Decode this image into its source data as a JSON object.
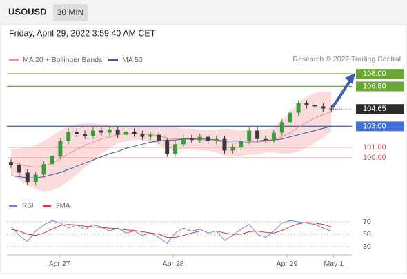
{
  "header": {
    "symbol": "USOUSD",
    "interval": "30 MIN",
    "timestamp": "Friday, April 29, 2022 3:59:40 AM CET"
  },
  "chart_data": {
    "type": "candlestick",
    "credit": "Research © 2022 Trading Central",
    "xlim": [
      -0.5,
      41.5
    ],
    "xticks": [
      {
        "value": 5.9,
        "label": "Apr 27"
      },
      {
        "value": 19.75,
        "label": "Apr 28"
      },
      {
        "value": 33.6,
        "label": "Apr 29"
      },
      {
        "value": 39.3,
        "label": "May 1"
      }
    ],
    "ylim": [
      96.66,
      108.8
    ],
    "up_color": "#3c9a3c",
    "down_color": "#3a3a3a",
    "open": [
      99.6,
      99.3,
      98.6,
      97.7,
      98.4,
      99.4,
      100.2,
      101.6,
      102.5,
      102.3,
      102.1,
      102.6,
      102.4,
      102.7,
      102.2,
      102.5,
      102.3,
      102.0,
      102.2,
      101.6,
      100.4,
      101.3,
      101.9,
      101.7,
      102.0,
      101.6,
      101.8,
      100.7,
      101.0,
      101.6,
      102.6,
      101.8,
      101.7,
      102.4,
      103.4,
      104.3,
      105.2,
      105.0,
      104.9,
      104.7
    ],
    "high": [
      99.9,
      99.6,
      98.9,
      98.7,
      99.7,
      100.5,
      101.9,
      102.8,
      102.8,
      102.6,
      102.9,
      102.9,
      103.0,
      103.0,
      102.8,
      102.8,
      102.6,
      102.5,
      102.5,
      101.9,
      101.6,
      102.2,
      102.2,
      102.3,
      102.3,
      102.1,
      102.1,
      101.3,
      101.9,
      102.9,
      102.9,
      102.1,
      102.7,
      103.7,
      104.6,
      105.5,
      105.5,
      105.3,
      105.2,
      105.0
    ],
    "low": [
      99.0,
      98.3,
      97.4,
      97.4,
      98.1,
      99.1,
      99.9,
      101.3,
      102.0,
      101.8,
      101.8,
      102.1,
      102.1,
      101.9,
      101.9,
      102.0,
      101.7,
      101.7,
      101.3,
      100.1,
      100.1,
      101.0,
      101.4,
      101.4,
      101.3,
      101.3,
      100.4,
      100.4,
      100.7,
      101.3,
      101.5,
      101.4,
      101.4,
      102.1,
      103.1,
      104.0,
      104.7,
      104.6,
      104.4,
      104.35
    ],
    "close": [
      99.3,
      98.6,
      97.7,
      98.4,
      99.4,
      100.2,
      101.6,
      102.5,
      102.3,
      102.1,
      102.6,
      102.4,
      102.7,
      102.2,
      102.5,
      102.3,
      102.0,
      102.2,
      101.6,
      100.4,
      101.3,
      101.9,
      101.7,
      102.0,
      101.6,
      101.8,
      100.7,
      101.0,
      101.6,
      102.6,
      101.8,
      101.7,
      102.4,
      103.4,
      104.3,
      105.2,
      105.0,
      104.9,
      104.7,
      104.65
    ],
    "overlays": [
      {
        "name": "MA 20 + Bollinger Bands",
        "color": "#ef8f8f",
        "band_color": "#fbdcdc",
        "values": [
          99.6,
          99.4,
          99.2,
          99.1,
          99.2,
          99.5,
          99.9,
          100.4,
          100.8,
          101.2,
          101.5,
          101.8,
          102.0,
          102.2,
          102.3,
          102.3,
          102.3,
          102.2,
          102.1,
          101.9,
          101.8,
          101.8,
          101.8,
          101.7,
          101.7,
          101.6,
          101.5,
          101.4,
          101.4,
          101.5,
          101.5,
          101.6,
          101.7,
          102.0,
          102.4,
          102.9,
          103.4,
          103.8,
          104.1,
          104.4
        ],
        "upper": [
          100.8,
          100.9,
          101.0,
          101.2,
          101.6,
          102.1,
          102.6,
          103.0,
          103.2,
          103.3,
          103.3,
          103.2,
          103.1,
          103.0,
          103.0,
          102.9,
          102.9,
          102.9,
          102.9,
          103.0,
          102.9,
          102.8,
          102.8,
          102.7,
          102.7,
          102.7,
          102.8,
          102.7,
          102.6,
          102.7,
          102.7,
          102.7,
          102.9,
          103.6,
          104.4,
          105.2,
          105.8,
          106.2,
          106.3,
          106.3
        ],
        "lower": [
          98.4,
          97.9,
          97.4,
          97.0,
          96.8,
          96.9,
          97.2,
          97.8,
          98.4,
          99.1,
          99.7,
          100.4,
          100.9,
          101.4,
          101.6,
          101.7,
          101.7,
          101.5,
          101.3,
          100.8,
          100.7,
          100.8,
          100.8,
          100.7,
          100.7,
          100.5,
          100.2,
          100.1,
          100.2,
          100.3,
          100.3,
          100.5,
          100.5,
          100.4,
          100.4,
          100.6,
          101.0,
          101.4,
          101.9,
          102.5
        ]
      },
      {
        "name": "MA 50",
        "color": "#3a5ba0",
        "values": [
          98.3,
          98.2,
          98.1,
          98.1,
          98.2,
          98.4,
          98.6,
          98.9,
          99.2,
          99.5,
          99.8,
          100.1,
          100.4,
          100.6,
          100.9,
          101.1,
          101.3,
          101.5,
          101.6,
          101.7,
          101.7,
          101.8,
          101.8,
          101.8,
          101.8,
          101.7,
          101.6,
          101.6,
          101.6,
          101.6,
          101.6,
          101.7,
          101.7,
          101.8,
          102.0,
          102.2,
          102.4,
          102.6,
          102.8,
          103.0
        ]
      }
    ],
    "levels": [
      {
        "value": 108,
        "label": "108.00",
        "color": "#6aa632",
        "style": "box"
      },
      {
        "value": 106.8,
        "label": "106.80",
        "color": "#6aa632",
        "style": "box"
      },
      {
        "value": 104.65,
        "label": "104.65",
        "color": "#2b2b2b",
        "style": "current"
      },
      {
        "value": 103,
        "label": "103.00",
        "color": "#3f6fd8",
        "style": "box"
      },
      {
        "value": 101,
        "label": "101.00",
        "color": "#d9534f",
        "style": "text"
      },
      {
        "value": 100,
        "label": "100.00",
        "color": "#d9534f",
        "style": "text"
      }
    ],
    "rsi": {
      "ylim": [
        18.9,
        81.1
      ],
      "yticks": [
        30,
        50,
        70
      ],
      "series": [
        {
          "name": "RSI",
          "color": "#6f86d6",
          "values": [
            62,
            48,
            38,
            55,
            65,
            72,
            68,
            60,
            65,
            58,
            65,
            62,
            55,
            60,
            52,
            55,
            48,
            52,
            45,
            35,
            52,
            60,
            55,
            58,
            52,
            55,
            40,
            48,
            58,
            66,
            50,
            45,
            55,
            68,
            72,
            70,
            68,
            66,
            60,
            55
          ]
        },
        {
          "name": "9MA",
          "color": "#d93b3b",
          "values": [
            58,
            55,
            50,
            48,
            52,
            58,
            64,
            66,
            65,
            63,
            62,
            61,
            60,
            59,
            57,
            56,
            54,
            52,
            50,
            45,
            45,
            48,
            52,
            55,
            55,
            55,
            52,
            50,
            50,
            54,
            55,
            53,
            52,
            56,
            62,
            67,
            69,
            68,
            66,
            62
          ]
        }
      ]
    }
  }
}
